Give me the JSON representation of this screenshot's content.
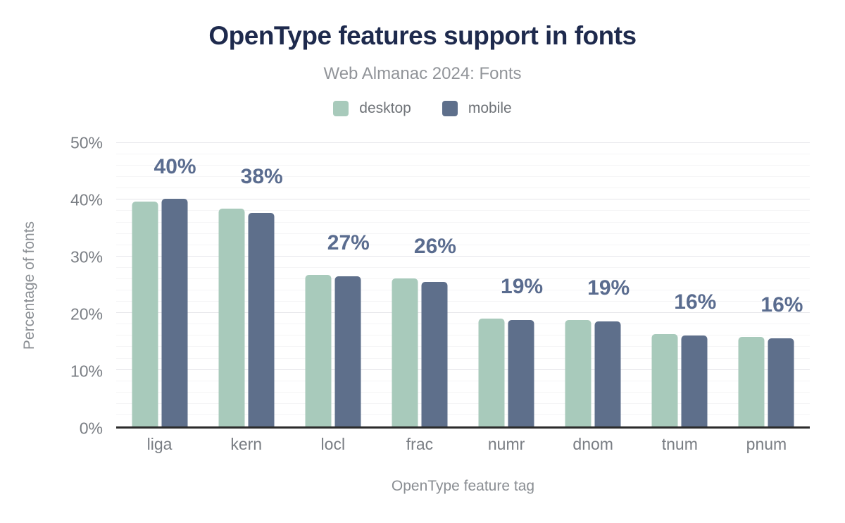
{
  "title": "OpenType features support in fonts",
  "subtitle": "Web Almanac 2024: Fonts",
  "legend": [
    {
      "label": "desktop",
      "color": "#a8cabb"
    },
    {
      "label": "mobile",
      "color": "#5e6f8b"
    }
  ],
  "axes": {
    "y_title": "Percentage of fonts",
    "x_title": "OpenType feature tag"
  },
  "colors": {
    "title": "#1e2a4d",
    "subtitle": "#919499",
    "data_label": "#5a6c8f",
    "tick_text": "#797d83",
    "axis_title_text": "#8a8e93",
    "axis_line": "#2b2b2b",
    "grid_major": "#e6e6ea",
    "grid_minor": "#f5f5f6",
    "desktop_bar": "#a8cabb",
    "mobile_bar": "#5e6f8b"
  },
  "chart_data": {
    "type": "bar",
    "title": "OpenType features support in fonts",
    "subtitle": "Web Almanac 2024: Fonts",
    "xlabel": "OpenType feature tag",
    "ylabel": "Percentage of fonts",
    "categories": [
      "liga",
      "kern",
      "locl",
      "frac",
      "numr",
      "dnom",
      "tnum",
      "pnum"
    ],
    "series": [
      {
        "name": "desktop",
        "color": "#a8cabb",
        "values": [
          39.7,
          38.4,
          26.8,
          26.1,
          19.0,
          18.8,
          16.3,
          15.8
        ]
      },
      {
        "name": "mobile",
        "color": "#5e6f8b",
        "values": [
          40.2,
          37.7,
          26.5,
          25.5,
          18.8,
          18.5,
          16.0,
          15.5
        ]
      }
    ],
    "data_labels": [
      "40%",
      "38%",
      "27%",
      "26%",
      "19%",
      "19%",
      "16%",
      "16%"
    ],
    "ylim": [
      0,
      50
    ],
    "ytick_step": 10,
    "yticks": [
      "0%",
      "10%",
      "20%",
      "30%",
      "40%",
      "50%"
    ],
    "minor_grid_step": 2,
    "grid": "on",
    "legend_position": "top"
  }
}
